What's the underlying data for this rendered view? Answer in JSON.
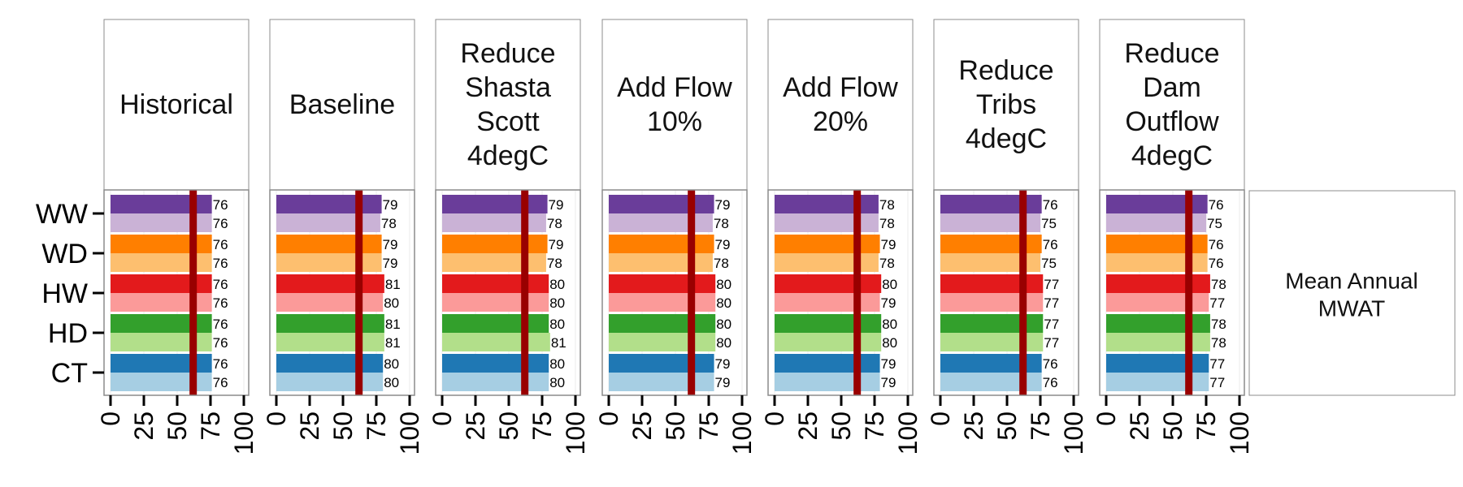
{
  "chart_data": {
    "type": "bar",
    "orientation": "horizontal",
    "side_label": [
      "Mean Annual",
      "MWAT"
    ],
    "categories": [
      "WW",
      "WD",
      "HW",
      "HD",
      "CT"
    ],
    "x_ticks": [
      "0",
      "25",
      "50",
      "75",
      "100"
    ],
    "xlim": [
      0,
      100
    ],
    "reference_line": 62,
    "colors": {
      "WW": [
        "#6a3d9a",
        "#cab2d6"
      ],
      "WD": [
        "#ff7f00",
        "#fdbf6f"
      ],
      "HW": [
        "#e31a1c",
        "#fb9a99"
      ],
      "HD": [
        "#33a02c",
        "#b2df8a"
      ],
      "CT": [
        "#1f78b4",
        "#a6cee3"
      ],
      "reference_line": "#990000"
    },
    "panels": [
      {
        "title": [
          "Historical"
        ],
        "values": {
          "WW": [
            76,
            76
          ],
          "WD": [
            76,
            76
          ],
          "HW": [
            76,
            76
          ],
          "HD": [
            76,
            76
          ],
          "CT": [
            76,
            76
          ]
        }
      },
      {
        "title": [
          "Baseline"
        ],
        "values": {
          "WW": [
            79,
            78
          ],
          "WD": [
            79,
            79
          ],
          "HW": [
            81,
            80
          ],
          "HD": [
            81,
            81
          ],
          "CT": [
            80,
            80
          ]
        }
      },
      {
        "title": [
          "Reduce",
          "Shasta",
          "Scott",
          "4degC"
        ],
        "values": {
          "WW": [
            79,
            78
          ],
          "WD": [
            79,
            78
          ],
          "HW": [
            80,
            80
          ],
          "HD": [
            80,
            81
          ],
          "CT": [
            80,
            80
          ]
        }
      },
      {
        "title": [
          "Add Flow",
          "10%"
        ],
        "values": {
          "WW": [
            79,
            78
          ],
          "WD": [
            79,
            78
          ],
          "HW": [
            80,
            80
          ],
          "HD": [
            80,
            80
          ],
          "CT": [
            79,
            79
          ]
        }
      },
      {
        "title": [
          "Add Flow",
          "20%"
        ],
        "values": {
          "WW": [
            78,
            78
          ],
          "WD": [
            79,
            78
          ],
          "HW": [
            80,
            79
          ],
          "HD": [
            80,
            80
          ],
          "CT": [
            79,
            79
          ]
        }
      },
      {
        "title": [
          "Reduce",
          "Tribs",
          "4degC"
        ],
        "values": {
          "WW": [
            76,
            75
          ],
          "WD": [
            76,
            75
          ],
          "HW": [
            77,
            77
          ],
          "HD": [
            77,
            77
          ],
          "CT": [
            76,
            76
          ]
        }
      },
      {
        "title": [
          "Reduce",
          "Dam",
          "Outflow",
          "4degC"
        ],
        "values": {
          "WW": [
            76,
            75
          ],
          "WD": [
            76,
            76
          ],
          "HW": [
            78,
            77
          ],
          "HD": [
            78,
            78
          ],
          "CT": [
            77,
            77
          ]
        }
      }
    ]
  }
}
